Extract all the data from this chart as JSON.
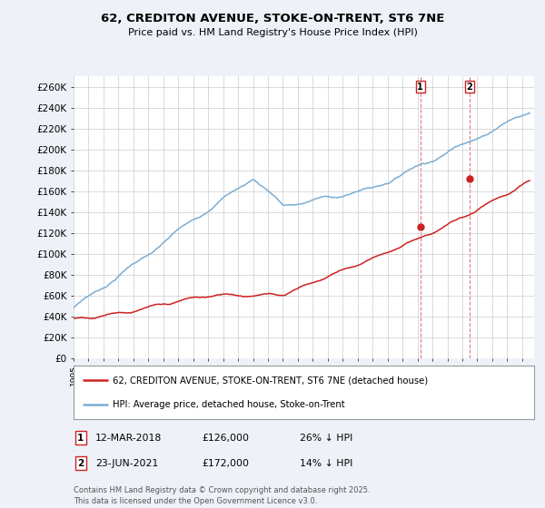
{
  "title": "62, CREDITON AVENUE, STOKE-ON-TRENT, ST6 7NE",
  "subtitle": "Price paid vs. HM Land Registry's House Price Index (HPI)",
  "ylim": [
    0,
    270000
  ],
  "xlim_start": 1995.0,
  "xlim_end": 2025.8,
  "hpi_color": "#7aadd4",
  "price_color": "#cc2222",
  "marker1_x": 2018.19,
  "marker1_y": 126000,
  "marker2_x": 2021.48,
  "marker2_y": 172000,
  "legend_label_price": "62, CREDITON AVENUE, STOKE-ON-TRENT, ST6 7NE (detached house)",
  "legend_label_hpi": "HPI: Average price, detached house, Stoke-on-Trent",
  "footer": "Contains HM Land Registry data © Crown copyright and database right 2025.\nThis data is licensed under the Open Government Licence v3.0.",
  "background_color": "#eef2f8",
  "plot_bg_color": "#ffffff",
  "grid_color": "#cccccc"
}
